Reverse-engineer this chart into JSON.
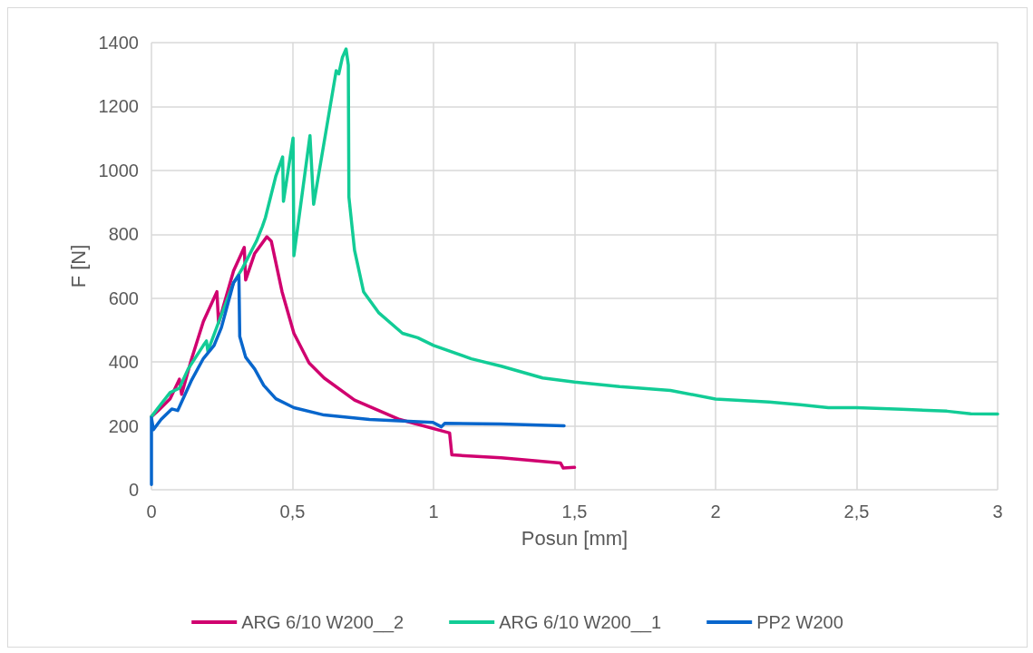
{
  "chart_data": {
    "type": "line",
    "xlabel": "Posun [mm]",
    "ylabel": "F [N]",
    "xlim": [
      0,
      3
    ],
    "xticks": [
      0,
      {
        "value": 0.5,
        "label": "0,5"
      },
      1,
      {
        "value": 1.5,
        "label": "1,5"
      },
      2,
      {
        "value": 2.5,
        "label": "2,5"
      },
      3
    ],
    "ylim": [
      0,
      1400
    ],
    "yticks": [
      0,
      200,
      400,
      600,
      800,
      1000,
      1200,
      1400
    ],
    "grid": true,
    "legend": "bottom",
    "marker": "none",
    "line_style": "solid",
    "series": [
      {
        "name": "ARG 6/10 W200__2",
        "color": "#d0006f",
        "x": [
          0,
          0.024,
          0.066,
          0.099,
          0.107,
          0.141,
          0.184,
          0.232,
          0.238,
          0.291,
          0.329,
          0.334,
          0.366,
          0.409,
          0.425,
          0.463,
          0.505,
          0.559,
          0.612,
          0.72,
          0.88,
          1.057,
          1.065,
          1.24,
          1.45,
          1.46,
          1.5
        ],
        "values": [
          229,
          248,
          285,
          346,
          299,
          406,
          527,
          620,
          522,
          685,
          759,
          657,
          740,
          792,
          778,
          620,
          490,
          397,
          350,
          281,
          220,
          178,
          109,
          100,
          84,
          68,
          70
        ]
      },
      {
        "name": "ARG 6/10 W200__1",
        "color": "#12cc96",
        "x": [
          0,
          0.024,
          0.066,
          0.099,
          0.13,
          0.184,
          0.195,
          0.2,
          0.243,
          0.291,
          0.323,
          0.372,
          0.393,
          0.404,
          0.441,
          0.465,
          0.468,
          0.502,
          0.505,
          0.562,
          0.575,
          0.655,
          0.664,
          0.677,
          0.69,
          0.698,
          0.7,
          0.72,
          0.752,
          0.805,
          0.89,
          0.944,
          1,
          1.134,
          1.24,
          1.387,
          1.5,
          1.66,
          1.84,
          2,
          2.19,
          2.3,
          2.4,
          2.5,
          2.66,
          2.82,
          2.905,
          3
        ],
        "values": [
          229,
          257,
          304,
          318,
          378,
          452,
          466,
          434,
          536,
          648,
          694,
          778,
          824,
          852,
          982,
          1042,
          903,
          1101,
          733,
          1109,
          894,
          1312,
          1302,
          1354,
          1380,
          1330,
          917,
          750,
          620,
          555,
          490,
          476,
          452,
          410,
          387,
          350,
          337,
          323,
          311,
          284,
          275,
          266,
          257,
          257,
          252,
          246,
          238,
          237
        ]
      },
      {
        "name": "PP2 W200",
        "color": "#0866cc",
        "x": [
          0,
          0,
          0.007,
          0.034,
          0.072,
          0.093,
          0.141,
          0.184,
          0.222,
          0.248,
          0.291,
          0.31,
          0.313,
          0.334,
          0.366,
          0.398,
          0.441,
          0.505,
          0.612,
          0.773,
          0.998,
          1.028,
          1.04,
          1.24,
          1.463
        ],
        "values": [
          16,
          225,
          188,
          220,
          253,
          248,
          341,
          411,
          452,
          508,
          648,
          671,
          480,
          415,
          378,
          327,
          285,
          257,
          234,
          220,
          211,
          197,
          208,
          206,
          200
        ]
      }
    ]
  }
}
